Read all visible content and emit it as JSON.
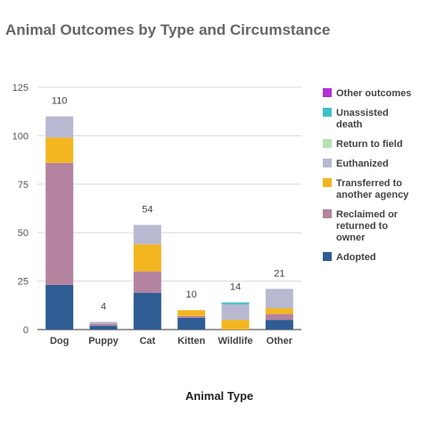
{
  "chart_data": {
    "type": "bar",
    "stacked": true,
    "title": "Animal Outcomes by Type and Circumstance",
    "xlabel": "Animal Type",
    "ylabel": "",
    "ylim": [
      0,
      125
    ],
    "yticks": [
      0,
      25,
      50,
      75,
      100,
      125
    ],
    "grid": true,
    "legend_position": "right",
    "categories": [
      "Dog",
      "Puppy",
      "Cat",
      "Kitten",
      "Wildlife",
      "Other"
    ],
    "totals": [
      110,
      4,
      54,
      10,
      14,
      21
    ],
    "series": [
      {
        "name": "Adopted",
        "color": "#2e5c93",
        "values": [
          23,
          2,
          19,
          6,
          0,
          5
        ]
      },
      {
        "name": "Reclaimed or returned to owner",
        "color": "#b3839f",
        "values": [
          63,
          1,
          11,
          1,
          0,
          3
        ]
      },
      {
        "name": "Transferred to another agency",
        "color": "#f3b621",
        "values": [
          13,
          0,
          14,
          3,
          5,
          3
        ]
      },
      {
        "name": "Euthanized",
        "color": "#b8b9d0",
        "values": [
          11,
          1,
          10,
          0,
          8,
          10
        ]
      },
      {
        "name": "Return to field",
        "color": "#b7e0b2",
        "values": [
          0,
          0,
          0,
          0,
          0,
          0
        ]
      },
      {
        "name": "Unassisted death",
        "color": "#3ec0c4",
        "values": [
          0,
          0,
          0,
          0,
          1,
          0
        ]
      },
      {
        "name": "Other outcomes",
        "color": "#b12fd6",
        "values": [
          0,
          0,
          0,
          0,
          0,
          0
        ]
      }
    ]
  }
}
